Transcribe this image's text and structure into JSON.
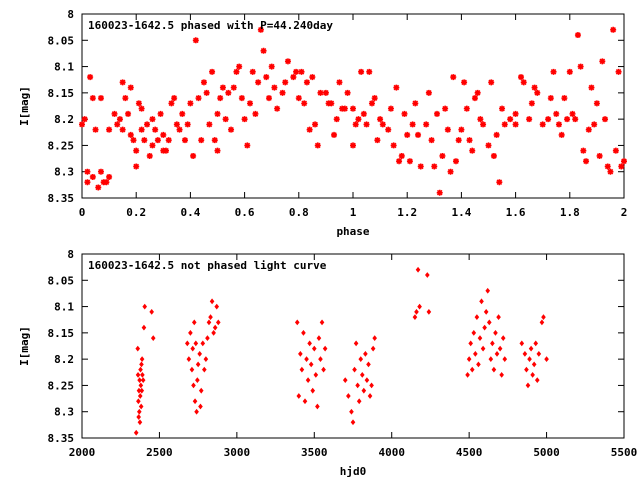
{
  "chart_data": [
    {
      "type": "scatter",
      "title": "160023-1642.5 phased with P=44.240day",
      "xlabel": "phase",
      "ylabel": "I[mag]",
      "xlim": [
        0,
        2
      ],
      "ylim": [
        8.35,
        8.0
      ],
      "y_inverted": true,
      "x_ticks": [
        "0",
        "0.2",
        "0.4",
        "0.6",
        "0.8",
        "1",
        "1.2",
        "1.4",
        "1.6",
        "1.8",
        "2"
      ],
      "y_ticks": [
        "8",
        "8.05",
        "8.1",
        "8.15",
        "8.2",
        "8.25",
        "8.3",
        "8.35"
      ],
      "marker": "star",
      "color": "#ff0000",
      "points": [
        [
          0.0,
          8.21
        ],
        [
          0.01,
          8.2
        ],
        [
          0.02,
          8.3
        ],
        [
          0.02,
          8.32
        ],
        [
          0.03,
          8.12
        ],
        [
          0.04,
          8.16
        ],
        [
          0.04,
          8.31
        ],
        [
          0.05,
          8.22
        ],
        [
          0.06,
          8.33
        ],
        [
          0.07,
          8.16
        ],
        [
          0.07,
          8.3
        ],
        [
          0.08,
          8.32
        ],
        [
          0.09,
          8.32
        ],
        [
          0.1,
          8.31
        ],
        [
          0.1,
          8.22
        ],
        [
          0.12,
          8.19
        ],
        [
          0.13,
          8.21
        ],
        [
          0.14,
          8.2
        ],
        [
          0.15,
          8.22
        ],
        [
          0.15,
          8.13
        ],
        [
          0.16,
          8.16
        ],
        [
          0.17,
          8.19
        ],
        [
          0.18,
          8.23
        ],
        [
          0.18,
          8.14
        ],
        [
          0.19,
          8.24
        ],
        [
          0.2,
          8.26
        ],
        [
          0.2,
          8.29
        ],
        [
          0.21,
          8.17
        ],
        [
          0.22,
          8.18
        ],
        [
          0.22,
          8.22
        ],
        [
          0.23,
          8.24
        ],
        [
          0.24,
          8.21
        ],
        [
          0.25,
          8.27
        ],
        [
          0.26,
          8.25
        ],
        [
          0.26,
          8.2
        ],
        [
          0.27,
          8.22
        ],
        [
          0.28,
          8.24
        ],
        [
          0.29,
          8.19
        ],
        [
          0.3,
          8.23
        ],
        [
          0.3,
          8.26
        ],
        [
          0.31,
          8.26
        ],
        [
          0.32,
          8.24
        ],
        [
          0.33,
          8.17
        ],
        [
          0.34,
          8.16
        ],
        [
          0.35,
          8.21
        ],
        [
          0.36,
          8.22
        ],
        [
          0.37,
          8.19
        ],
        [
          0.38,
          8.24
        ],
        [
          0.39,
          8.21
        ],
        [
          0.4,
          8.17
        ],
        [
          0.41,
          8.27
        ],
        [
          0.42,
          8.05
        ],
        [
          0.43,
          8.16
        ],
        [
          0.44,
          8.24
        ],
        [
          0.45,
          8.13
        ],
        [
          0.46,
          8.15
        ],
        [
          0.47,
          8.21
        ],
        [
          0.48,
          8.11
        ],
        [
          0.49,
          8.24
        ],
        [
          0.5,
          8.19
        ],
        [
          0.51,
          8.16
        ],
        [
          0.52,
          8.14
        ],
        [
          0.53,
          8.2
        ],
        [
          0.54,
          8.15
        ],
        [
          0.55,
          8.22
        ],
        [
          0.56,
          8.14
        ],
        [
          0.57,
          8.11
        ],
        [
          0.58,
          8.1
        ],
        [
          0.59,
          8.16
        ],
        [
          0.6,
          8.2
        ],
        [
          0.61,
          8.25
        ],
        [
          0.62,
          8.17
        ],
        [
          0.63,
          8.11
        ],
        [
          0.64,
          8.19
        ],
        [
          0.65,
          8.13
        ],
        [
          0.66,
          8.03
        ],
        [
          0.67,
          8.07
        ],
        [
          0.68,
          8.12
        ],
        [
          0.69,
          8.16
        ],
        [
          0.7,
          8.1
        ],
        [
          0.71,
          8.14
        ],
        [
          0.72,
          8.18
        ],
        [
          0.74,
          8.15
        ],
        [
          0.75,
          8.13
        ],
        [
          0.76,
          8.09
        ],
        [
          0.78,
          8.12
        ],
        [
          0.79,
          8.11
        ],
        [
          0.8,
          8.16
        ],
        [
          0.81,
          8.11
        ],
        [
          0.82,
          8.17
        ],
        [
          0.83,
          8.13
        ],
        [
          0.84,
          8.22
        ],
        [
          0.85,
          8.12
        ],
        [
          0.86,
          8.21
        ],
        [
          0.87,
          8.25
        ],
        [
          0.88,
          8.15
        ],
        [
          0.9,
          8.15
        ],
        [
          0.91,
          8.17
        ],
        [
          0.92,
          8.17
        ],
        [
          0.93,
          8.23
        ],
        [
          0.94,
          8.2
        ],
        [
          0.95,
          8.13
        ],
        [
          0.96,
          8.18
        ],
        [
          0.97,
          8.18
        ],
        [
          0.98,
          8.15
        ],
        [
          1.0,
          8.18
        ],
        [
          1.01,
          8.21
        ],
        [
          1.02,
          8.2
        ],
        [
          1.03,
          8.11
        ],
        [
          1.04,
          8.19
        ],
        [
          1.05,
          8.21
        ],
        [
          1.06,
          8.11
        ],
        [
          1.07,
          8.17
        ],
        [
          1.08,
          8.16
        ],
        [
          1.09,
          8.24
        ],
        [
          1.1,
          8.2
        ],
        [
          1.11,
          8.21
        ],
        [
          1.13,
          8.22
        ],
        [
          1.14,
          8.18
        ],
        [
          1.15,
          8.25
        ],
        [
          1.16,
          8.14
        ],
        [
          1.17,
          8.28
        ],
        [
          1.18,
          8.27
        ],
        [
          1.19,
          8.19
        ],
        [
          1.2,
          8.23
        ],
        [
          1.21,
          8.28
        ],
        [
          1.22,
          8.21
        ],
        [
          1.23,
          8.17
        ],
        [
          1.24,
          8.23
        ],
        [
          1.25,
          8.29
        ],
        [
          1.27,
          8.21
        ],
        [
          1.28,
          8.15
        ],
        [
          1.29,
          8.24
        ],
        [
          1.3,
          8.29
        ],
        [
          1.31,
          8.19
        ],
        [
          1.32,
          8.34
        ],
        [
          1.33,
          8.27
        ],
        [
          1.34,
          8.18
        ],
        [
          1.35,
          8.22
        ],
        [
          1.36,
          8.3
        ],
        [
          1.37,
          8.12
        ],
        [
          1.38,
          8.28
        ],
        [
          1.39,
          8.24
        ],
        [
          1.4,
          8.22
        ],
        [
          1.41,
          8.13
        ],
        [
          1.42,
          8.18
        ],
        [
          1.43,
          8.24
        ],
        [
          1.44,
          8.26
        ],
        [
          1.45,
          8.16
        ],
        [
          1.46,
          8.15
        ],
        [
          1.47,
          8.2
        ],
        [
          1.48,
          8.21
        ],
        [
          1.5,
          8.25
        ],
        [
          1.51,
          8.13
        ],
        [
          1.52,
          8.27
        ],
        [
          1.53,
          8.23
        ],
        [
          1.54,
          8.32
        ],
        [
          1.55,
          8.18
        ],
        [
          1.56,
          8.21
        ],
        [
          1.58,
          8.2
        ],
        [
          1.6,
          8.21
        ],
        [
          1.62,
          8.12
        ],
        [
          1.63,
          8.13
        ],
        [
          1.65,
          8.2
        ],
        [
          1.66,
          8.17
        ],
        [
          1.67,
          8.14
        ],
        [
          1.68,
          8.15
        ],
        [
          1.7,
          8.21
        ],
        [
          1.72,
          8.2
        ],
        [
          1.73,
          8.16
        ],
        [
          1.74,
          8.11
        ],
        [
          1.75,
          8.19
        ],
        [
          1.76,
          8.21
        ],
        [
          1.77,
          8.23
        ],
        [
          1.78,
          8.16
        ],
        [
          1.79,
          8.2
        ],
        [
          1.8,
          8.11
        ],
        [
          1.81,
          8.19
        ],
        [
          1.82,
          8.2
        ],
        [
          1.83,
          8.04
        ],
        [
          1.84,
          8.1
        ],
        [
          1.85,
          8.26
        ],
        [
          1.86,
          8.28
        ],
        [
          1.87,
          8.22
        ],
        [
          1.88,
          8.14
        ],
        [
          1.89,
          8.21
        ],
        [
          1.9,
          8.17
        ],
        [
          1.91,
          8.27
        ],
        [
          1.92,
          8.09
        ],
        [
          1.93,
          8.2
        ],
        [
          1.94,
          8.29
        ],
        [
          1.95,
          8.3
        ],
        [
          1.96,
          8.03
        ],
        [
          1.97,
          8.26
        ],
        [
          1.98,
          8.11
        ],
        [
          1.99,
          8.29
        ],
        [
          2.0,
          8.28
        ],
        [
          1.6,
          8.19
        ],
        [
          1.0,
          8.25
        ],
        [
          0.5,
          8.26
        ]
      ]
    },
    {
      "type": "scatter",
      "title": "160023-1642.5 not phased light curve",
      "xlabel": "hjd0",
      "ylabel": "I[mag]",
      "xlim": [
        2000,
        5500
      ],
      "ylim": [
        8.35,
        8.0
      ],
      "y_inverted": true,
      "x_ticks": [
        "2000",
        "2500",
        "3000",
        "3500",
        "4000",
        "4500",
        "5000",
        "5500"
      ],
      "y_ticks": [
        "8",
        "8.05",
        "8.1",
        "8.15",
        "8.2",
        "8.25",
        "8.3",
        "8.35"
      ],
      "marker": "diamond",
      "color": "#ff0000",
      "points": [
        [
          2350,
          8.34
        ],
        [
          2360,
          8.18
        ],
        [
          2362,
          8.23
        ],
        [
          2364,
          8.28
        ],
        [
          2366,
          8.31
        ],
        [
          2368,
          8.26
        ],
        [
          2370,
          8.3
        ],
        [
          2372,
          8.24
        ],
        [
          2374,
          8.32
        ],
        [
          2376,
          8.27
        ],
        [
          2378,
          8.22
        ],
        [
          2380,
          8.25
        ],
        [
          2382,
          8.29
        ],
        [
          2384,
          8.21
        ],
        [
          2386,
          8.26
        ],
        [
          2388,
          8.2
        ],
        [
          2390,
          8.23
        ],
        [
          2395,
          8.24
        ],
        [
          2400,
          8.14
        ],
        [
          2405,
          8.1
        ],
        [
          2450,
          8.11
        ],
        [
          2460,
          8.16
        ],
        [
          2680,
          8.17
        ],
        [
          2690,
          8.2
        ],
        [
          2700,
          8.15
        ],
        [
          2710,
          8.22
        ],
        [
          2715,
          8.18
        ],
        [
          2720,
          8.25
        ],
        [
          2725,
          8.13
        ],
        [
          2730,
          8.28
        ],
        [
          2735,
          8.17
        ],
        [
          2740,
          8.3
        ],
        [
          2745,
          8.24
        ],
        [
          2750,
          8.21
        ],
        [
          2760,
          8.19
        ],
        [
          2765,
          8.29
        ],
        [
          2770,
          8.26
        ],
        [
          2780,
          8.17
        ],
        [
          2790,
          8.22
        ],
        [
          2800,
          8.2
        ],
        [
          2810,
          8.16
        ],
        [
          2820,
          8.13
        ],
        [
          2830,
          8.12
        ],
        [
          2840,
          8.09
        ],
        [
          2850,
          8.15
        ],
        [
          2860,
          8.14
        ],
        [
          2870,
          8.1
        ],
        [
          2880,
          8.13
        ],
        [
          3390,
          8.13
        ],
        [
          3400,
          8.27
        ],
        [
          3410,
          8.19
        ],
        [
          3420,
          8.22
        ],
        [
          3430,
          8.15
        ],
        [
          3440,
          8.28
        ],
        [
          3450,
          8.2
        ],
        [
          3460,
          8.24
        ],
        [
          3470,
          8.17
        ],
        [
          3480,
          8.21
        ],
        [
          3490,
          8.26
        ],
        [
          3500,
          8.18
        ],
        [
          3510,
          8.23
        ],
        [
          3520,
          8.29
        ],
        [
          3530,
          8.16
        ],
        [
          3540,
          8.2
        ],
        [
          3550,
          8.13
        ],
        [
          3560,
          8.22
        ],
        [
          3570,
          8.18
        ],
        [
          3700,
          8.24
        ],
        [
          3720,
          8.27
        ],
        [
          3740,
          8.3
        ],
        [
          3750,
          8.32
        ],
        [
          3760,
          8.22
        ],
        [
          3770,
          8.17
        ],
        [
          3780,
          8.25
        ],
        [
          3790,
          8.28
        ],
        [
          3800,
          8.2
        ],
        [
          3810,
          8.23
        ],
        [
          3820,
          8.26
        ],
        [
          3830,
          8.19
        ],
        [
          3840,
          8.24
        ],
        [
          3850,
          8.21
        ],
        [
          3860,
          8.27
        ],
        [
          3870,
          8.25
        ],
        [
          3880,
          8.18
        ],
        [
          3890,
          8.16
        ],
        [
          4150,
          8.12
        ],
        [
          4160,
          8.11
        ],
        [
          4170,
          8.03
        ],
        [
          4180,
          8.1
        ],
        [
          4230,
          8.04
        ],
        [
          4240,
          8.11
        ],
        [
          4490,
          8.23
        ],
        [
          4500,
          8.2
        ],
        [
          4510,
          8.17
        ],
        [
          4520,
          8.22
        ],
        [
          4530,
          8.15
        ],
        [
          4540,
          8.19
        ],
        [
          4550,
          8.12
        ],
        [
          4560,
          8.21
        ],
        [
          4570,
          8.16
        ],
        [
          4580,
          8.09
        ],
        [
          4590,
          8.18
        ],
        [
          4600,
          8.14
        ],
        [
          4610,
          8.11
        ],
        [
          4620,
          8.07
        ],
        [
          4630,
          8.13
        ],
        [
          4640,
          8.2
        ],
        [
          4650,
          8.17
        ],
        [
          4660,
          8.22
        ],
        [
          4670,
          8.15
        ],
        [
          4680,
          8.19
        ],
        [
          4690,
          8.12
        ],
        [
          4700,
          8.18
        ],
        [
          4710,
          8.23
        ],
        [
          4720,
          8.16
        ],
        [
          4730,
          8.2
        ],
        [
          4840,
          8.17
        ],
        [
          4860,
          8.19
        ],
        [
          4870,
          8.22
        ],
        [
          4880,
          8.25
        ],
        [
          4890,
          8.2
        ],
        [
          4900,
          8.18
        ],
        [
          4910,
          8.23
        ],
        [
          4920,
          8.21
        ],
        [
          4930,
          8.17
        ],
        [
          4940,
          8.24
        ],
        [
          4950,
          8.19
        ],
        [
          4970,
          8.13
        ],
        [
          4980,
          8.12
        ],
        [
          5000,
          8.2
        ]
      ]
    }
  ]
}
